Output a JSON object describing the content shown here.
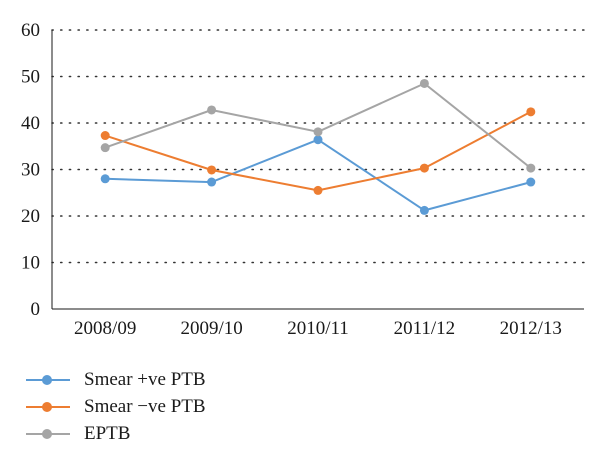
{
  "chart_data": {
    "type": "line",
    "categories": [
      "2008/09",
      "2009/10",
      "2010/11",
      "2011/12",
      "2012/13"
    ],
    "ylim": [
      0,
      60
    ],
    "yticks": [
      "0",
      "10",
      "20",
      "30",
      "40",
      "50",
      "60"
    ],
    "grid": "dotted horizontal",
    "legend_position": "bottom-left",
    "series": [
      {
        "name": "Smear +ve PTB",
        "color": "#5b9bd5",
        "values": [
          28.0,
          27.3,
          36.4,
          21.2,
          27.3
        ]
      },
      {
        "name": "Smear −ve PTB",
        "color": "#ed7d31",
        "values": [
          37.3,
          29.9,
          25.5,
          30.3,
          42.4
        ]
      },
      {
        "name": "EPTB",
        "color": "#a5a5a5",
        "values": [
          34.7,
          42.8,
          38.1,
          48.5,
          30.3
        ]
      }
    ]
  }
}
